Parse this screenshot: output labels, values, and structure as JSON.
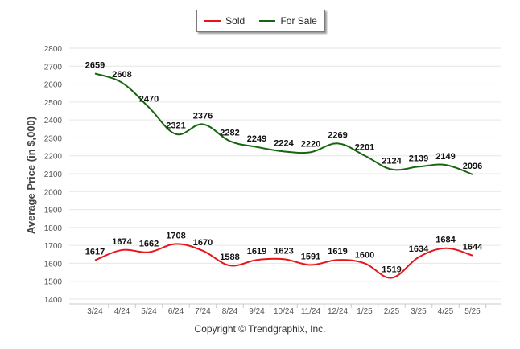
{
  "copyright": "Copyright © Trendgraphix, Inc.",
  "chart_data": {
    "type": "line",
    "ylabel": "Average Price (in $,000)",
    "xlabel": "",
    "ylim": [
      1400,
      2800
    ],
    "yticks": [
      1400,
      1500,
      1600,
      1700,
      1800,
      1900,
      2000,
      2100,
      2200,
      2300,
      2400,
      2500,
      2600,
      2700,
      2800
    ],
    "categories": [
      "3/24",
      "4/24",
      "5/24",
      "6/24",
      "7/24",
      "8/24",
      "9/24",
      "10/24",
      "11/24",
      "12/24",
      "1/25",
      "2/25",
      "3/25",
      "4/25",
      "5/25"
    ],
    "grid": true,
    "legend_position": "top",
    "series": [
      {
        "name": "Sold",
        "color": "#e8141b",
        "values": [
          1617,
          1674,
          1662,
          1708,
          1670,
          1588,
          1619,
          1623,
          1591,
          1619,
          1600,
          1519,
          1634,
          1684,
          1644
        ]
      },
      {
        "name": "For Sale",
        "color": "#17660f",
        "values": [
          2659,
          2608,
          2470,
          2321,
          2376,
          2282,
          2249,
          2224,
          2220,
          2269,
          2201,
          2124,
          2139,
          2149,
          2096
        ]
      }
    ]
  }
}
